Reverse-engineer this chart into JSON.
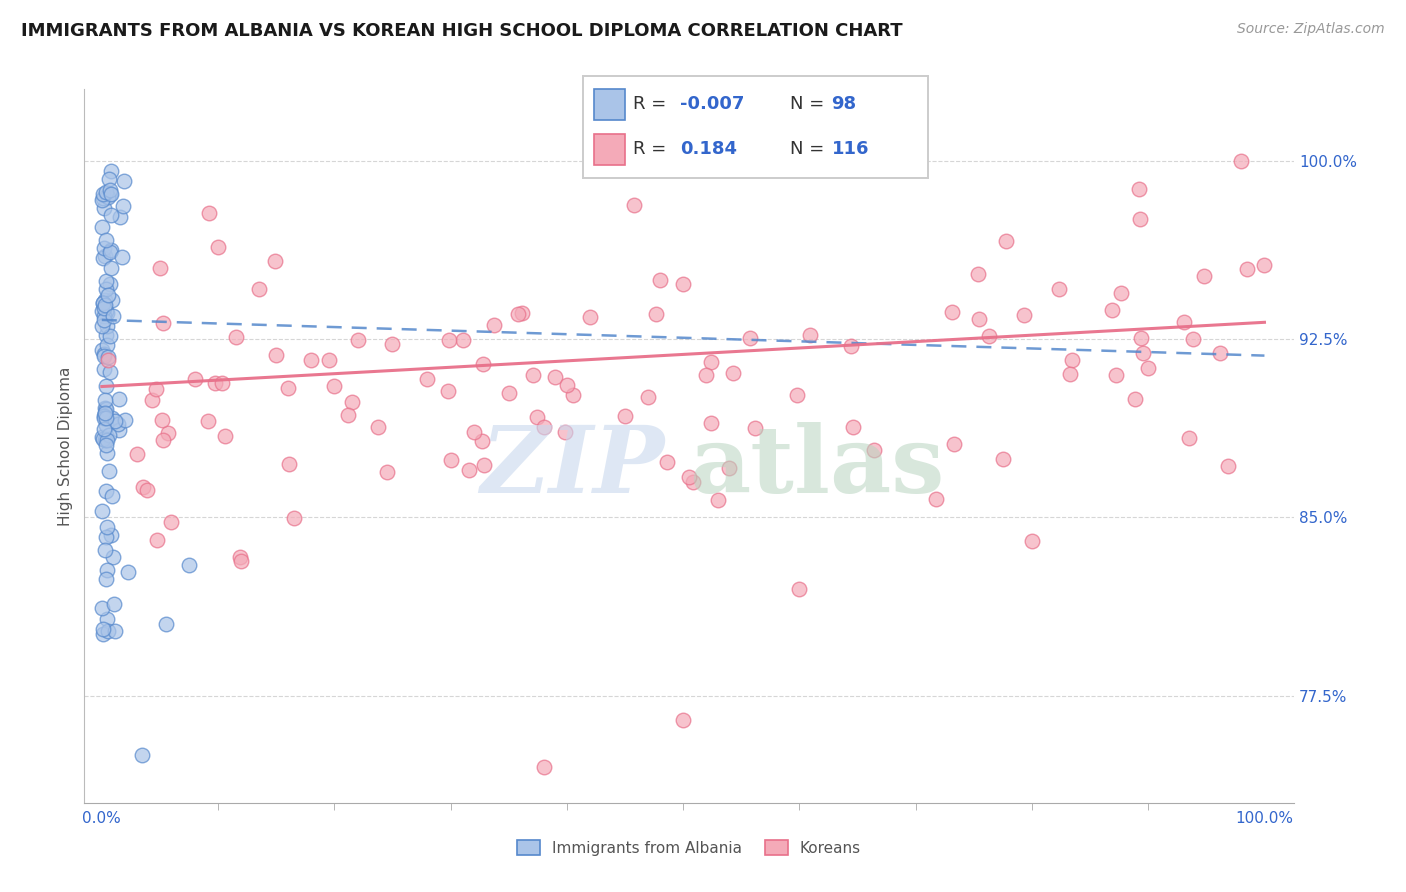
{
  "title": "IMMIGRANTS FROM ALBANIA VS KOREAN HIGH SCHOOL DIPLOMA CORRELATION CHART",
  "source": "Source: ZipAtlas.com",
  "ylabel": "High School Diploma",
  "blue_R": "-0.007",
  "blue_N": "98",
  "pink_R": "0.184",
  "pink_N": "116",
  "y_tick_values": [
    77.5,
    85.0,
    92.5,
    100.0
  ],
  "xlim": [
    -1.5,
    102.5
  ],
  "ylim": [
    73.0,
    103.0
  ],
  "blue_color": "#5588cc",
  "pink_color": "#e8708a",
  "blue_fill": "#aac4e8",
  "pink_fill": "#f4aab8",
  "legend_text_color": "#3366cc",
  "grid_color": "#cccccc",
  "title_fontsize": 13,
  "source_fontsize": 10,
  "blue_line_start": 93.3,
  "blue_line_end": 91.8,
  "pink_line_start": 90.5,
  "pink_line_end": 93.2
}
